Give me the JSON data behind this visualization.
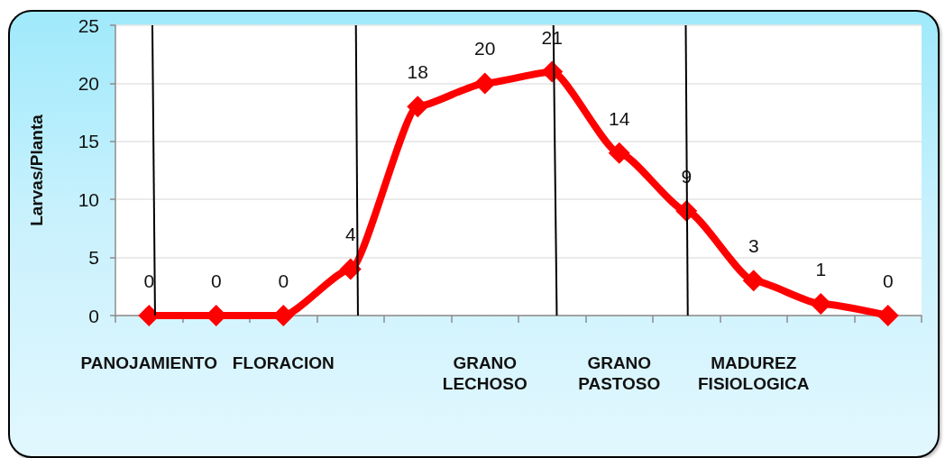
{
  "chart_data": {
    "type": "line",
    "ylabel": "Larvas/Planta",
    "categories": [
      "PANOJAMIENTO",
      null,
      "FLORACION",
      null,
      null,
      "GRANO LECHOSO",
      null,
      "GRANO PASTOSO",
      null,
      "MADUREZ FISIOLOGICA",
      null,
      null
    ],
    "ylim": [
      0,
      25
    ],
    "yticks": [
      0,
      5,
      10,
      15,
      20,
      25
    ],
    "series": [
      {
        "color": "#ff0000",
        "values": [
          0,
          0,
          0,
          4,
          18,
          20,
          21,
          14,
          9,
          3,
          1,
          0
        ]
      }
    ],
    "data_labels": true,
    "marker": "diamond",
    "line_style": "solid",
    "grid": "y"
  }
}
